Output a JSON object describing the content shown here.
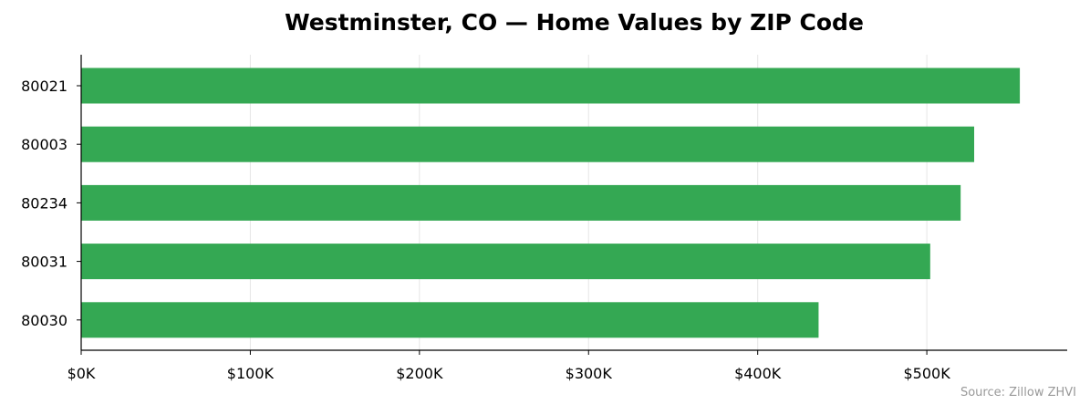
{
  "chart_data": {
    "type": "bar",
    "orientation": "horizontal",
    "title": "Westminster, CO — Home Values by ZIP Code",
    "xlabel": "",
    "ylabel": "",
    "categories": [
      "80021",
      "80003",
      "80234",
      "80031",
      "80030"
    ],
    "values": [
      555000,
      528000,
      520000,
      502000,
      436000
    ],
    "xlim": [
      0,
      583000
    ],
    "x_ticks": [
      0,
      100000,
      200000,
      300000,
      400000,
      500000
    ],
    "x_tick_labels": [
      "$0K",
      "$100K",
      "$200K",
      "$300K",
      "$400K",
      "$500K"
    ],
    "grid": "vertical",
    "bar_color": "#34a853",
    "source": "Source: Zillow ZHVI"
  }
}
